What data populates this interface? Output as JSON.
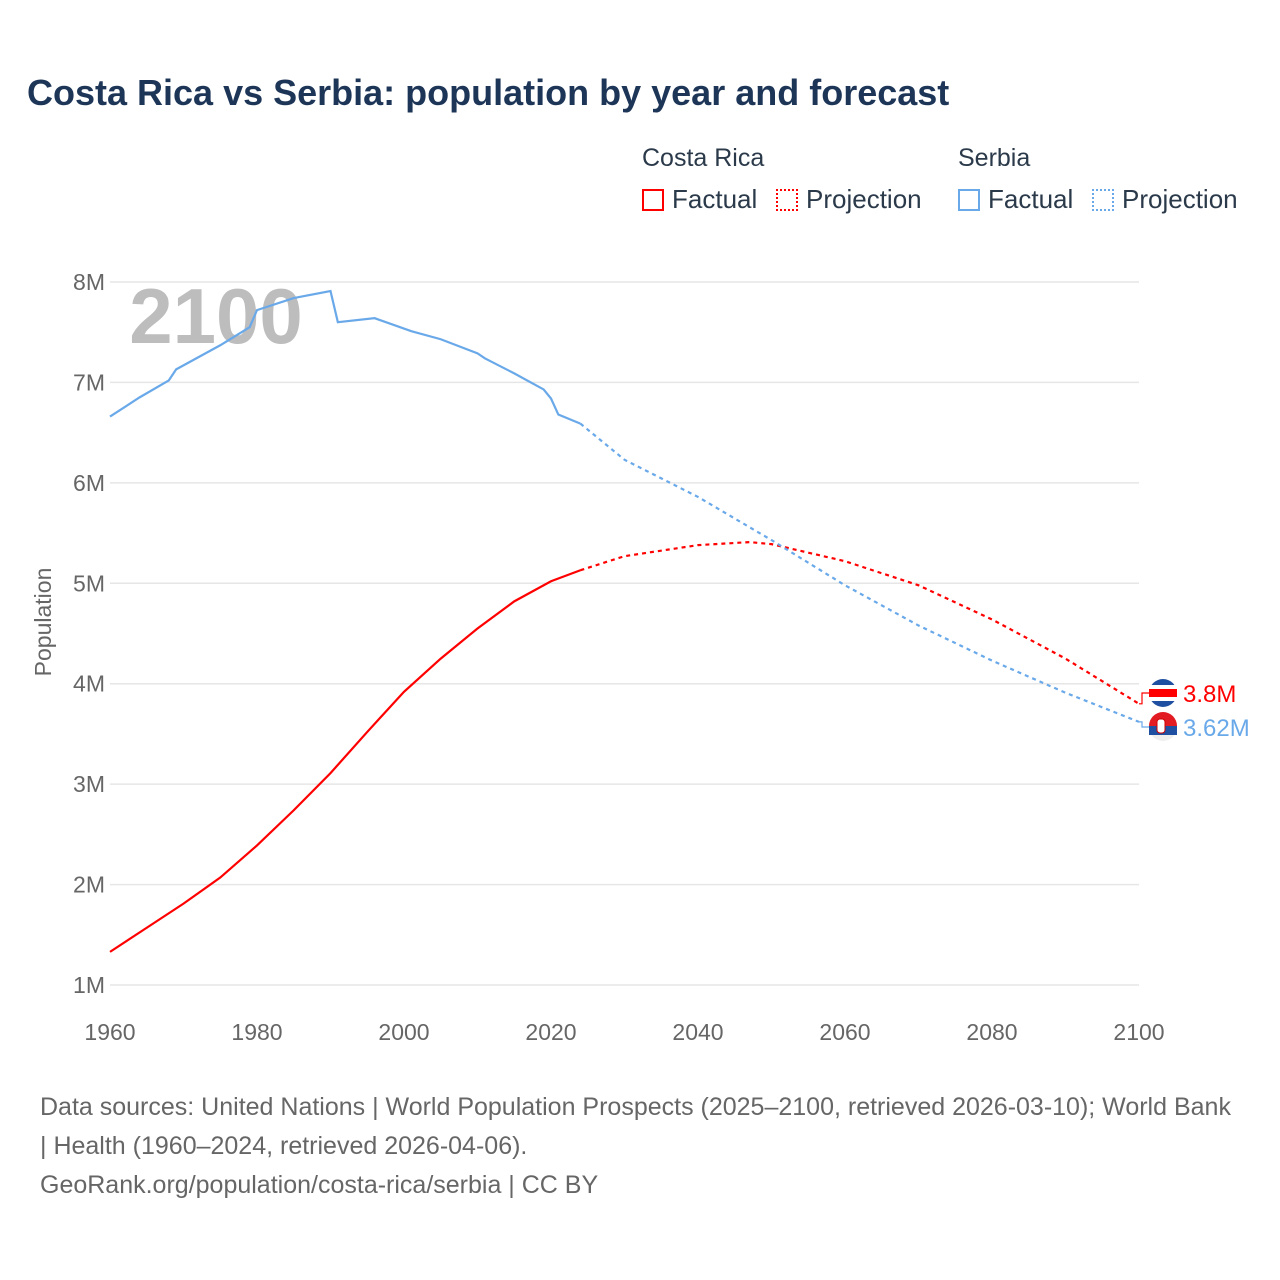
{
  "title": "Costa Rica vs Serbia: population by year and forecast",
  "legend": {
    "groups": [
      {
        "name": "Costa Rica",
        "factual": "Factual",
        "projection": "Projection",
        "color": "#ff0000"
      },
      {
        "name": "Serbia",
        "factual": "Factual",
        "projection": "Projection",
        "color": "#6aa9e9"
      }
    ]
  },
  "year_watermark": "2100",
  "footer": {
    "line1": "Data sources: United Nations | World Population Prospects (2025–2100, retrieved 2026-03-10); World Bank | Health (1960–2024, retrieved 2026-04-06).",
    "line2": "GeoRank.org/population/costa-rica/serbia | CC BY"
  },
  "chart_data": {
    "type": "line",
    "title": "Costa Rica vs Serbia: population by year and forecast",
    "xlabel": "",
    "ylabel": "Population",
    "xlim": [
      1960,
      2100
    ],
    "ylim": [
      1,
      8
    ],
    "xticks": [
      "1960",
      "1980",
      "2000",
      "2020",
      "2040",
      "2060",
      "2080",
      "2100"
    ],
    "yticks": [
      "1M",
      "2M",
      "3M",
      "4M",
      "5M",
      "6M",
      "7M",
      "8M"
    ],
    "grid": true,
    "legend_position": "top-right",
    "series": [
      {
        "name": "Costa Rica",
        "color": "#ff0000",
        "end_label": "3.8M",
        "factual": [
          [
            1960,
            1.33
          ],
          [
            1965,
            1.57
          ],
          [
            1970,
            1.81
          ],
          [
            1975,
            2.07
          ],
          [
            1980,
            2.39
          ],
          [
            1985,
            2.74
          ],
          [
            1990,
            3.11
          ],
          [
            1995,
            3.52
          ],
          [
            2000,
            3.92
          ],
          [
            2005,
            4.25
          ],
          [
            2010,
            4.55
          ],
          [
            2015,
            4.82
          ],
          [
            2020,
            5.02
          ],
          [
            2024,
            5.13
          ]
        ],
        "projection": [
          [
            2024,
            5.13
          ],
          [
            2030,
            5.27
          ],
          [
            2040,
            5.38
          ],
          [
            2047,
            5.41
          ],
          [
            2050,
            5.39
          ],
          [
            2060,
            5.22
          ],
          [
            2070,
            4.98
          ],
          [
            2080,
            4.64
          ],
          [
            2090,
            4.25
          ],
          [
            2100,
            3.8
          ]
        ]
      },
      {
        "name": "Serbia",
        "color": "#6aa9e9",
        "end_label": "3.62M",
        "factual": [
          [
            1960,
            6.66
          ],
          [
            1964,
            6.85
          ],
          [
            1968,
            7.02
          ],
          [
            1969,
            7.13
          ],
          [
            1975,
            7.37
          ],
          [
            1979,
            7.55
          ],
          [
            1980,
            7.72
          ],
          [
            1985,
            7.84
          ],
          [
            1990,
            7.91
          ],
          [
            1991,
            7.6
          ],
          [
            1996,
            7.64
          ],
          [
            2001,
            7.51
          ],
          [
            2005,
            7.43
          ],
          [
            2010,
            7.29
          ],
          [
            2011,
            7.24
          ],
          [
            2015,
            7.09
          ],
          [
            2019,
            6.93
          ],
          [
            2020,
            6.84
          ],
          [
            2021,
            6.68
          ],
          [
            2024,
            6.59
          ]
        ],
        "projection": [
          [
            2024,
            6.59
          ],
          [
            2030,
            6.23
          ],
          [
            2040,
            5.86
          ],
          [
            2050,
            5.43
          ],
          [
            2060,
            4.98
          ],
          [
            2070,
            4.58
          ],
          [
            2080,
            4.23
          ],
          [
            2090,
            3.91
          ],
          [
            2100,
            3.62
          ]
        ]
      }
    ]
  }
}
